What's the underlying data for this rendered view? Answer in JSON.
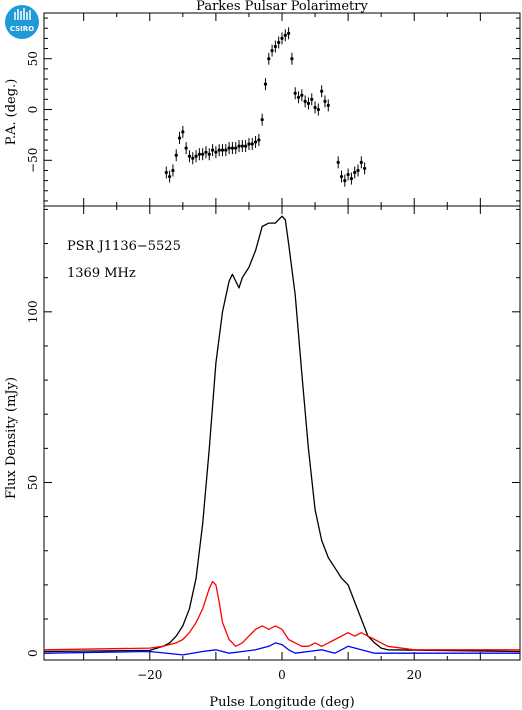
{
  "title": "Parkes Pulsar Polarimetry",
  "logo_text": "CSIRO",
  "colors": {
    "total": "#000000",
    "linear": "#ff0000",
    "circular": "#0000ff",
    "logo": "#1f9ad8"
  },
  "chart_data": [
    {
      "type": "scatter",
      "ylabel": "P.A. (deg.)",
      "xlim": [
        -36,
        36
      ],
      "ylim": [
        -95,
        95
      ],
      "yticks": [
        -50,
        0,
        50
      ],
      "x_axis_shared": true,
      "error_bars": true,
      "segments": [
        {
          "x": [
            -17.5,
            -17.0,
            -16.5,
            -16.0,
            -15.5,
            -15.0,
            -14.5,
            -14.0,
            -13.5,
            -13.0,
            -12.5,
            -12.0,
            -11.5,
            -11.0,
            -10.5,
            -10.0,
            -9.5,
            -9.0,
            -8.5,
            -8.0,
            -7.5,
            -7.0,
            -6.5,
            -6.0,
            -5.5,
            -5.0,
            -4.5,
            -4.0,
            -3.5,
            -3.0,
            -2.5,
            -2.0,
            -1.5,
            -1.0,
            -0.5,
            0.0,
            0.5,
            1.0,
            1.5
          ],
          "y": [
            -62,
            -66,
            -60,
            -45,
            -28,
            -22,
            -38,
            -46,
            -48,
            -46,
            -44,
            -44,
            -42,
            -44,
            -40,
            -42,
            -40,
            -40,
            -40,
            -38,
            -38,
            -38,
            -36,
            -36,
            -36,
            -34,
            -34,
            -32,
            -30,
            -10,
            25,
            50,
            58,
            62,
            66,
            70,
            73,
            75,
            50
          ]
        },
        {
          "x": [
            2.0,
            2.5,
            3.0,
            3.5,
            4.0,
            4.5,
            5.0,
            5.5,
            6.0,
            6.5,
            7.0
          ],
          "y": [
            16,
            12,
            14,
            8,
            6,
            10,
            2,
            0,
            18,
            8,
            4
          ]
        },
        {
          "x": [
            8.5,
            9.0,
            9.5,
            10.0,
            10.5,
            11.0,
            11.5,
            12.0,
            12.5
          ],
          "y": [
            -52,
            -66,
            -70,
            -64,
            -68,
            -62,
            -60,
            -52,
            -58
          ]
        }
      ]
    },
    {
      "type": "line",
      "xlabel": "Pulse Longitude (deg)",
      "ylabel": "Flux Density (mJy)",
      "xlim": [
        -36,
        36
      ],
      "ylim": [
        -2,
        131
      ],
      "xticks": [
        -20,
        0,
        20
      ],
      "yticks": [
        0,
        50,
        100
      ],
      "annotations": [
        "PSR J1136−5525",
        "1369 MHz"
      ],
      "series": [
        {
          "color": "#000000",
          "x": [
            -36,
            -20,
            -18,
            -17,
            -16,
            -15,
            -14,
            -13,
            -12,
            -11,
            -10,
            -9,
            -8,
            -7.5,
            -7,
            -6.5,
            -6,
            -5,
            -4,
            -3,
            -2,
            -1,
            0,
            0.5,
            1,
            2,
            3,
            4,
            5,
            6,
            7,
            8,
            9,
            10,
            11,
            12,
            13,
            14,
            15,
            16,
            36
          ],
          "y": [
            0.5,
            0.8,
            2,
            3,
            5,
            8,
            13,
            22,
            38,
            60,
            85,
            100,
            109,
            111,
            109,
            107,
            110,
            113,
            118,
            125,
            126,
            126,
            128,
            127,
            120,
            105,
            82,
            60,
            42,
            33,
            28,
            25,
            22,
            20,
            15,
            10,
            5,
            3,
            1.5,
            1,
            0.5
          ]
        },
        {
          "color": "#ff0000",
          "x": [
            -36,
            -20,
            -18,
            -16,
            -15,
            -14,
            -13,
            -12,
            -11,
            -10.5,
            -10,
            -9.5,
            -9,
            -8,
            -7,
            -6,
            -5,
            -4,
            -3,
            -2,
            -1,
            0,
            1,
            2,
            3,
            4,
            5,
            6,
            7,
            8,
            9,
            10,
            11,
            12,
            13,
            14,
            16,
            20,
            36
          ],
          "y": [
            1,
            1.5,
            2,
            3,
            4,
            6,
            9,
            13,
            19,
            21,
            20,
            15,
            9,
            4,
            2,
            3,
            5,
            7,
            8,
            7,
            8,
            7,
            4,
            3,
            2,
            2,
            3,
            2,
            3,
            4,
            5,
            6,
            5,
            6,
            5,
            4,
            2,
            1,
            1
          ]
        },
        {
          "color": "#0000ff",
          "x": [
            -36,
            -20,
            -15,
            -12,
            -10,
            -8,
            -6,
            -4,
            -2,
            -1,
            0,
            1,
            2,
            4,
            6,
            8,
            10,
            12,
            14,
            16,
            36
          ],
          "y": [
            0,
            0.5,
            -0.5,
            0.5,
            1,
            0,
            0.5,
            1,
            2,
            3,
            2.5,
            1,
            0,
            0.5,
            1,
            0,
            2,
            1,
            0,
            0,
            0
          ]
        }
      ]
    }
  ]
}
